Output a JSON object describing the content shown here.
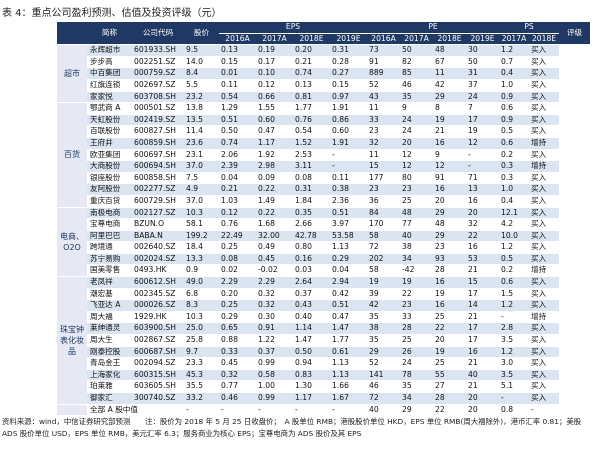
{
  "title": "表 4：重点公司盈利预测、估值及投资评级（元）",
  "header": {
    "name": "简称",
    "code": "公司代码",
    "price": "股价",
    "eps": "EPS",
    "pe": "PE",
    "ps": "PS",
    "rating": "评级",
    "eps_years": [
      "2016A",
      "2017A",
      "2018E",
      "2019E"
    ],
    "pe_years": [
      "2016A",
      "2017A",
      "2018E",
      "2019E"
    ],
    "ps_years": [
      "2017A",
      "2018E"
    ]
  },
  "groups": [
    {
      "label": "超市",
      "rows": [
        [
          "永辉超市",
          "601933.SH",
          "9.5",
          "0.13",
          "0.19",
          "0.20",
          "0.31",
          "73",
          "50",
          "48",
          "30",
          "1.2",
          "买入"
        ],
        [
          "步步高",
          "002251.SZ",
          "14.0",
          "0.15",
          "0.17",
          "0.21",
          "0.28",
          "91",
          "82",
          "67",
          "50",
          "0.7",
          "买入"
        ],
        [
          "中百集团",
          "000759.SZ",
          "8.4",
          "0.01",
          "0.10",
          "0.74",
          "0.27",
          "889",
          "85",
          "11",
          "31",
          "0.4",
          "买入"
        ],
        [
          "红旗连锁",
          "002697.SZ",
          "5.5",
          "0.11",
          "0.12",
          "0.13",
          "0.15",
          "52",
          "46",
          "42",
          "37",
          "1.0",
          "买入"
        ],
        [
          "家家悦",
          "603708.SH",
          "23.2",
          "0.54",
          "0.66",
          "0.81",
          "0.97",
          "43",
          "35",
          "29",
          "24",
          "0.9",
          "买入"
        ]
      ]
    },
    {
      "label": "百货",
      "rows": [
        [
          "鄂武商 A",
          "000501.SZ",
          "13.8",
          "1.29",
          "1.55",
          "1.77",
          "1.91",
          "11",
          "9",
          "8",
          "7",
          "0.6",
          "买入"
        ],
        [
          "天虹股份",
          "002419.SZ",
          "13.5",
          "0.51",
          "0.60",
          "0.76",
          "0.86",
          "33",
          "24",
          "19",
          "17",
          "0.9",
          "买入"
        ],
        [
          "百联股份",
          "600827.SH",
          "11.4",
          "0.50",
          "0.47",
          "0.54",
          "0.60",
          "23",
          "24",
          "21",
          "19",
          "0.5",
          "买入"
        ],
        [
          "王府井",
          "600859.SH",
          "23.6",
          "0.74",
          "1.17",
          "1.52",
          "1.91",
          "32",
          "20",
          "16",
          "12",
          "0.6",
          "增持"
        ],
        [
          "欧亚集团",
          "600697.SH",
          "23.1",
          "2.06",
          "1.92",
          "2.53",
          "-",
          "11",
          "12",
          "9",
          "-",
          "0.2",
          "买入"
        ],
        [
          "大商股份",
          "600694.SH",
          "37.0",
          "2.39",
          "2.98",
          "3.11",
          "-",
          "15",
          "12",
          "12",
          "-",
          "0.3",
          "增持"
        ],
        [
          "银座股份",
          "600858.SH",
          "7.5",
          "0.04",
          "0.09",
          "0.08",
          "0.11",
          "177",
          "80",
          "91",
          "71",
          "0.3",
          "买入"
        ],
        [
          "友阿股份",
          "002277.SZ",
          "4.9",
          "0.21",
          "0.22",
          "0.31",
          "0.38",
          "23",
          "23",
          "16",
          "13",
          "1.0",
          "买入"
        ],
        [
          "重庆百货",
          "600729.SH",
          "37.0",
          "1.03",
          "1.49",
          "1.84",
          "2.36",
          "36",
          "25",
          "20",
          "16",
          "0.4",
          "买入"
        ]
      ]
    },
    {
      "label": "电商、O2O",
      "rows": [
        [
          "南极电商",
          "002127.SZ",
          "10.3",
          "0.12",
          "0.22",
          "0.35",
          "0.51",
          "84",
          "48",
          "29",
          "20",
          "12.1",
          "买入"
        ],
        [
          "宝尊电商",
          "BZUN.O",
          "58.1",
          "0.76",
          "1.68",
          "2.66",
          "3.97",
          "170",
          "77",
          "48",
          "32",
          "4.2",
          "买入"
        ],
        [
          "阿里巴巴",
          "BABA.N",
          "199.2",
          "22.49",
          "32.00",
          "42.78",
          "53.58",
          "58",
          "40",
          "29",
          "22",
          "10.0",
          "买入"
        ],
        [
          "跨境通",
          "002640.SZ",
          "18.4",
          "0.25",
          "0.49",
          "0.80",
          "1.13",
          "72",
          "38",
          "23",
          "16",
          "1.2",
          "买入"
        ],
        [
          "苏宁易购",
          "002024.SZ",
          "13.3",
          "0.08",
          "0.45",
          "0.16",
          "0.29",
          "202",
          "34",
          "93",
          "53",
          "0.5",
          "买入"
        ],
        [
          "国美零售",
          "0493.HK",
          "0.9",
          "0.02",
          "-0.02",
          "0.03",
          "0.04",
          "58",
          "-42",
          "28",
          "21",
          "0.2",
          "增持"
        ]
      ]
    },
    {
      "label": "珠宝钟表化妆品",
      "rows": [
        [
          "老凤祥",
          "600612.SH",
          "49.0",
          "2.29",
          "2.29",
          "2.64",
          "2.94",
          "19",
          "19",
          "16",
          "15",
          "0.6",
          "买入"
        ],
        [
          "潮宏基",
          "002345.SZ",
          "6.8",
          "0.20",
          "0.32",
          "0.37",
          "0.42",
          "39",
          "22",
          "19",
          "17",
          "1.5",
          "买入"
        ],
        [
          "飞亚达 A",
          "000026.SZ",
          "8.3",
          "0.25",
          "0.32",
          "0.43",
          "0.51",
          "42",
          "23",
          "16",
          "14",
          "1.2",
          "买入"
        ],
        [
          "周大福",
          "1929.HK",
          "10.3",
          "0.29",
          "0.30",
          "0.40",
          "0.47",
          "35",
          "33",
          "25",
          "21",
          "-",
          "增持"
        ],
        [
          "莱绅通灵",
          "603900.SH",
          "25.0",
          "0.65",
          "0.91",
          "1.14",
          "1.47",
          "38",
          "28",
          "22",
          "17",
          "2.8",
          "买入"
        ],
        [
          "周大生",
          "002867.SZ",
          "25.8",
          "0.88",
          "1.22",
          "1.47",
          "1.77",
          "35",
          "25",
          "20",
          "17",
          "3.5",
          "买入"
        ],
        [
          "刚泰控股",
          "600687.SH",
          "9.7",
          "0.33",
          "0.37",
          "0.50",
          "0.61",
          "29",
          "26",
          "19",
          "16",
          "1.2",
          "买入"
        ],
        [
          "青岛金王",
          "002094.SZ",
          "23.3",
          "0.45",
          "0.99",
          "0.94",
          "1.13",
          "52",
          "24",
          "25",
          "21",
          "3.0",
          "买入"
        ],
        [
          "上海家化",
          "600315.SH",
          "45.3",
          "0.32",
          "0.58",
          "0.83",
          "1.13",
          "141",
          "78",
          "55",
          "40",
          "3.5",
          "买入"
        ],
        [
          "珀莱雅",
          "603605.SH",
          "35.5",
          "0.77",
          "1.00",
          "1.30",
          "1.66",
          "46",
          "35",
          "27",
          "21",
          "5.1",
          "买入"
        ],
        [
          "御家汇",
          "300740.SZ",
          "33.2",
          "0.46",
          "0.99",
          "1.17",
          "1.67",
          "72",
          "34",
          "28",
          "20",
          "-",
          "买入"
        ]
      ]
    }
  ],
  "summary": {
    "label": "全部 A 股中值",
    "cells": [
      "-",
      "-",
      "-",
      "-",
      "-",
      "40",
      "29",
      "22",
      "20",
      "0.8",
      "-"
    ]
  },
  "footer": "资料来源：wind，中信证券研究部预测　　注：股价为 2018 年 5 月 25 日收盘价；　A 股单位 RMB；港股股价单位 HKD，EPS 单位 RMB(周大福除外)，港币汇率 0.81；美股 ADS 股价单位 USD，EPS 单位 RMB，美元汇率 6.3；服务商业为核心 EPS；宝尊电商为 ADS 股价及其 EPS"
}
